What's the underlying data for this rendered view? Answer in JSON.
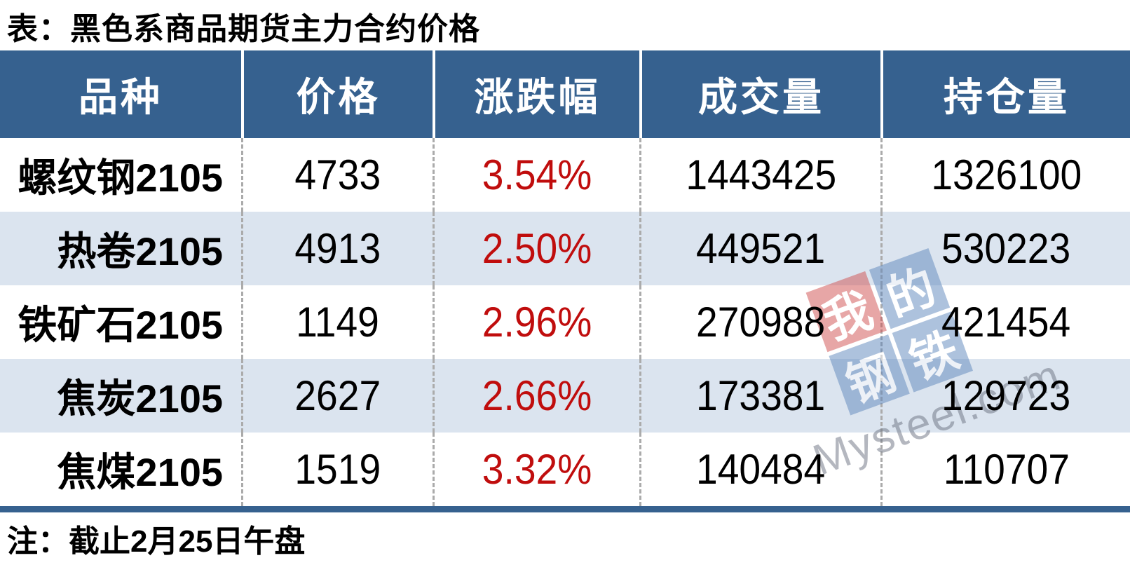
{
  "title": "表：黑色系商品期货主力合约价格",
  "note": "注：截止2月25日午盘",
  "colors": {
    "header_bg": "#36618F",
    "alt_row_bg": "#DBE4EF",
    "change_text": "#C00D0D",
    "header_text": "#FFFFFF",
    "body_text": "#000000",
    "divider_dashed": "#ABABAB",
    "watermark_red_tile": "#D05050",
    "watermark_blue_tile": "#5E87BC"
  },
  "watermark": {
    "tiles": [
      "我",
      "的",
      "钢",
      "铁"
    ],
    "brand_text": "Mysteel.com"
  },
  "chart_data": {
    "type": "table",
    "title": "表：黑色系商品期货主力合约价格",
    "columns": [
      "品种",
      "价格",
      "涨跌幅",
      "成交量",
      "持仓量"
    ],
    "rows": [
      [
        "螺纹钢2105",
        "4733",
        "3.54%",
        "1443425",
        "1326100"
      ],
      [
        "热卷2105",
        "4913",
        "2.50%",
        "449521",
        "530223"
      ],
      [
        "铁矿石2105",
        "1149",
        "2.96%",
        "270988",
        "421454"
      ],
      [
        "焦炭2105",
        "2627",
        "2.66%",
        "173381",
        "129723"
      ],
      [
        "焦煤2105",
        "1519",
        "3.32%",
        "140484",
        "110707"
      ]
    ],
    "footnote": "注：截止2月25日午盘",
    "layout": {
      "grid": "alternating-row-shading",
      "header_separators": "solid-white",
      "body_separators": "dashed-gray"
    }
  }
}
